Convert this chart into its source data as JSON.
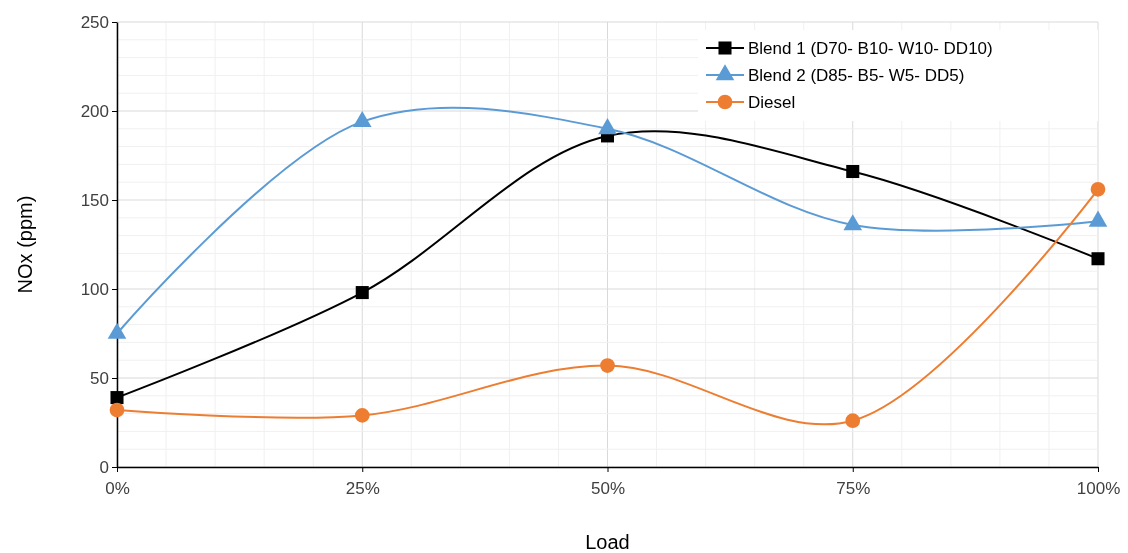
{
  "chart_data": {
    "type": "line",
    "xlabel": "Load",
    "ylabel": "NOx (ppm)",
    "x": [
      0,
      25,
      50,
      75,
      100
    ],
    "xlim": [
      0,
      100
    ],
    "xticks": [
      {
        "value": 0,
        "label": "0%"
      },
      {
        "value": 25,
        "label": "25%"
      },
      {
        "value": 50,
        "label": "50%"
      },
      {
        "value": 75,
        "label": "75%"
      },
      {
        "value": 100,
        "label": "100%"
      }
    ],
    "ylim": [
      0,
      250
    ],
    "yticks": [
      0,
      50,
      100,
      150,
      200,
      250
    ],
    "grid": true,
    "legend": "top right",
    "series": [
      {
        "name": "Blend 1 (D70- B10- W10- DD10)",
        "color": "#000000",
        "marker": "square",
        "values": [
          39,
          98,
          186,
          166,
          117
        ]
      },
      {
        "name": "Blend 2 (D85- B5- W5- DD5)",
        "color": "#5b9bd5",
        "marker": "triangle",
        "values": [
          75,
          194,
          190,
          136,
          138
        ]
      },
      {
        "name": "Diesel",
        "color": "#ed7d31",
        "marker": "circle",
        "values": [
          32,
          29,
          57,
          26,
          156
        ]
      }
    ]
  }
}
